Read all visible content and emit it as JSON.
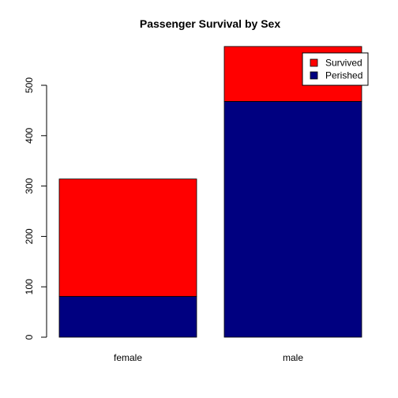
{
  "chart_data": {
    "type": "bar",
    "stacked": true,
    "title": "Passenger Survival by Sex",
    "xlabel": "",
    "ylabel": "",
    "categories": [
      "female",
      "male"
    ],
    "series": [
      {
        "name": "Perished",
        "color": "#000080",
        "values": [
          81,
          468
        ]
      },
      {
        "name": "Survived",
        "color": "#ff0000",
        "values": [
          233,
          109
        ]
      }
    ],
    "legend_order": [
      "Survived",
      "Perished"
    ],
    "legend_position": "top-right",
    "yticks": [
      0,
      100,
      200,
      300,
      400,
      500
    ],
    "ylim": [
      0,
      577
    ],
    "grid": false
  }
}
